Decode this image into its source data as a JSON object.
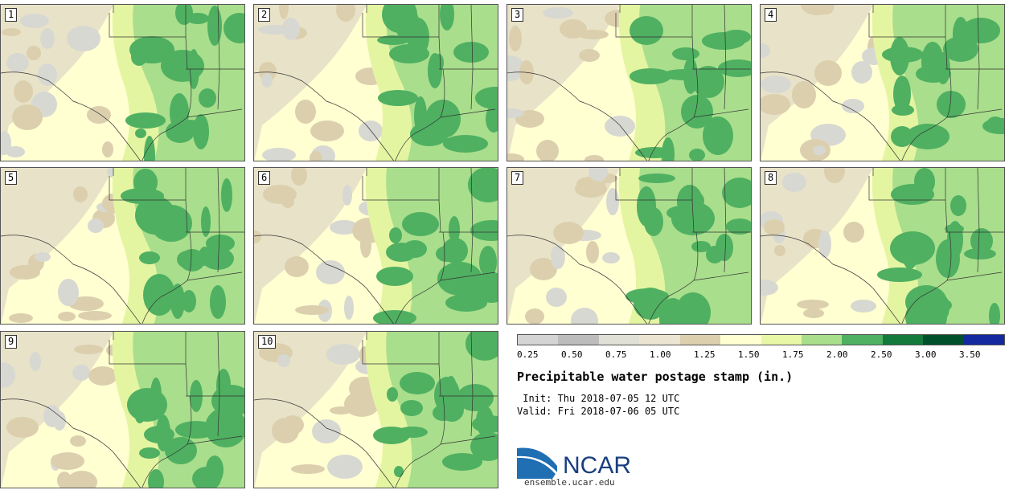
{
  "panels": [
    {
      "label": "1"
    },
    {
      "label": "2"
    },
    {
      "label": "3"
    },
    {
      "label": "4"
    },
    {
      "label": "5"
    },
    {
      "label": "6"
    },
    {
      "label": "7"
    },
    {
      "label": "8"
    },
    {
      "label": "9"
    },
    {
      "label": "10"
    }
  ],
  "legend": {
    "colors": [
      "#d4d4d4",
      "#bcbcbc",
      "#e0e0d6",
      "#eae4d0",
      "#dccfae",
      "#ffffd2",
      "#e8f7a6",
      "#a9de8c",
      "#4fb061",
      "#137a3c",
      "#00502b",
      "#1428a0"
    ],
    "ticks": [
      "0.25",
      "0.50",
      "0.75",
      "1.00",
      "1.25",
      "1.50",
      "1.75",
      "2.00",
      "2.50",
      "3.00",
      "3.50"
    ]
  },
  "title": "Precipitable water postage stamp (in.)",
  "init": " Init: Thu 2018-07-05 12 UTC",
  "valid": "Valid: Fri 2018-07-06 05 UTC",
  "logo": {
    "name": "NCAR",
    "site": "ensemble.ucar.edu"
  }
}
